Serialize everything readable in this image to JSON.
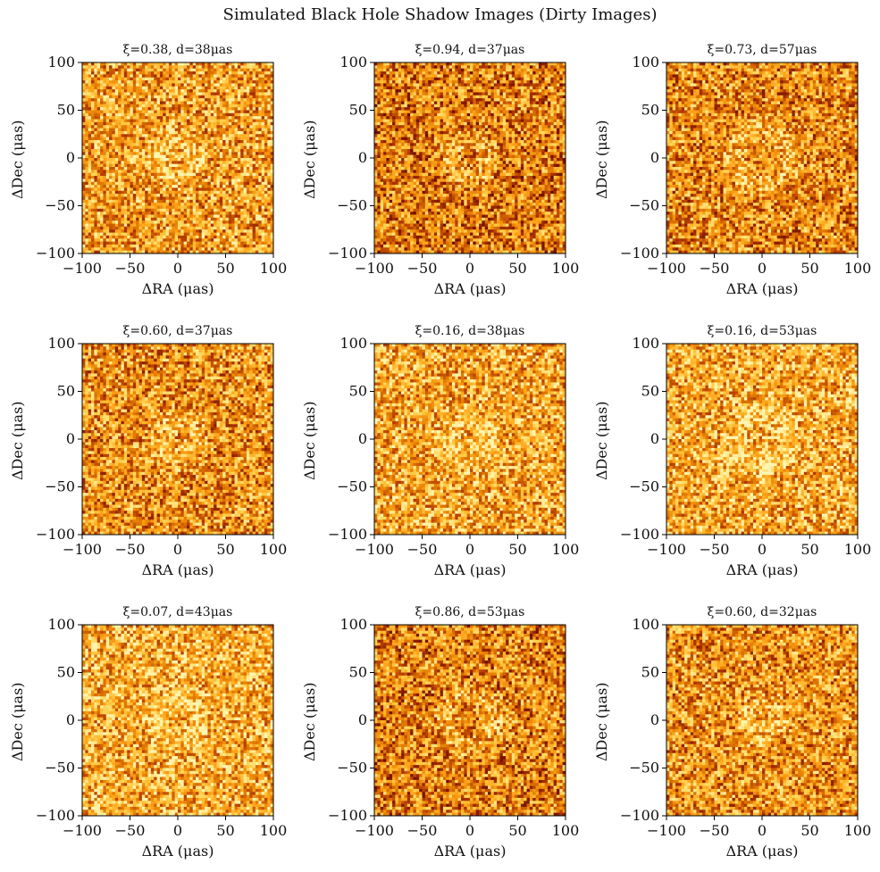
{
  "figure": {
    "title": "Simulated Black Hole Shadow Images (Dirty Images)"
  },
  "colormap": {
    "name": "afmhot",
    "stops": [
      "#5e0000",
      "#b33a00",
      "#e07800",
      "#ffa51a",
      "#ffd04d",
      "#fff5b0"
    ]
  },
  "chart_data": [
    {
      "type": "heatmap",
      "title": "ξ=0.38, d=38μas",
      "xi": 0.38,
      "d_uas": 38,
      "xlabel": "ΔRA (μas)",
      "ylabel": "ΔDec (μas)",
      "xlim": [
        -100,
        100
      ],
      "ylim": [
        -100,
        100
      ],
      "xticks": [
        -100,
        -50,
        0,
        50,
        100
      ],
      "yticks": [
        -100,
        -50,
        0,
        50,
        100
      ],
      "xtick_labels": [
        "−100",
        "−50",
        "0",
        "50",
        "100"
      ],
      "ytick_labels": [
        "−100",
        "−50",
        "0",
        "50",
        "100"
      ],
      "grid_n": 64,
      "seed": 11
    },
    {
      "type": "heatmap",
      "title": "ξ=0.94, d=37μas",
      "xi": 0.94,
      "d_uas": 37,
      "xlabel": "ΔRA (μas)",
      "ylabel": "ΔDec (μas)",
      "xlim": [
        -100,
        100
      ],
      "ylim": [
        -100,
        100
      ],
      "xticks": [
        -100,
        -50,
        0,
        50,
        100
      ],
      "yticks": [
        -100,
        -50,
        0,
        50,
        100
      ],
      "xtick_labels": [
        "−100",
        "−50",
        "0",
        "50",
        "100"
      ],
      "ytick_labels": [
        "−100",
        "−50",
        "0",
        "50",
        "100"
      ],
      "grid_n": 64,
      "seed": 23
    },
    {
      "type": "heatmap",
      "title": "ξ=0.73, d=57μas",
      "xi": 0.73,
      "d_uas": 57,
      "xlabel": "ΔRA (μas)",
      "ylabel": "ΔDec (μas)",
      "xlim": [
        -100,
        100
      ],
      "ylim": [
        -100,
        100
      ],
      "xticks": [
        -100,
        -50,
        0,
        50,
        100
      ],
      "yticks": [
        -100,
        -50,
        0,
        50,
        100
      ],
      "xtick_labels": [
        "−100",
        "−50",
        "0",
        "50",
        "100"
      ],
      "ytick_labels": [
        "−100",
        "−50",
        "0",
        "50",
        "100"
      ],
      "grid_n": 64,
      "seed": 37
    },
    {
      "type": "heatmap",
      "title": "ξ=0.60, d=37μas",
      "xi": 0.6,
      "d_uas": 37,
      "xlabel": "ΔRA (μas)",
      "ylabel": "ΔDec (μas)",
      "xlim": [
        -100,
        100
      ],
      "ylim": [
        -100,
        100
      ],
      "xticks": [
        -100,
        -50,
        0,
        50,
        100
      ],
      "yticks": [
        -100,
        -50,
        0,
        50,
        100
      ],
      "xtick_labels": [
        "−100",
        "−50",
        "0",
        "50",
        "100"
      ],
      "ytick_labels": [
        "−100",
        "−50",
        "0",
        "50",
        "100"
      ],
      "grid_n": 64,
      "seed": 41
    },
    {
      "type": "heatmap",
      "title": "ξ=0.16, d=38μas",
      "xi": 0.16,
      "d_uas": 38,
      "xlabel": "ΔRA (μas)",
      "ylabel": "ΔDec (μas)",
      "xlim": [
        -100,
        100
      ],
      "ylim": [
        -100,
        100
      ],
      "xticks": [
        -100,
        -50,
        0,
        50,
        100
      ],
      "yticks": [
        -100,
        -50,
        0,
        50,
        100
      ],
      "xtick_labels": [
        "−100",
        "−50",
        "0",
        "50",
        "100"
      ],
      "ytick_labels": [
        "−100",
        "−50",
        "0",
        "50",
        "100"
      ],
      "grid_n": 64,
      "seed": 53
    },
    {
      "type": "heatmap",
      "title": "ξ=0.16, d=53μas",
      "xi": 0.16,
      "d_uas": 53,
      "xlabel": "ΔRA (μas)",
      "ylabel": "ΔDec (μas)",
      "xlim": [
        -100,
        100
      ],
      "ylim": [
        -100,
        100
      ],
      "xticks": [
        -100,
        -50,
        0,
        50,
        100
      ],
      "yticks": [
        -100,
        -50,
        0,
        50,
        100
      ],
      "xtick_labels": [
        "−100",
        "−50",
        "0",
        "50",
        "100"
      ],
      "ytick_labels": [
        "−100",
        "−50",
        "0",
        "50",
        "100"
      ],
      "grid_n": 64,
      "seed": 67
    },
    {
      "type": "heatmap",
      "title": "ξ=0.07, d=43μas",
      "xi": 0.07,
      "d_uas": 43,
      "xlabel": "ΔRA (μas)",
      "ylabel": "ΔDec (μas)",
      "xlim": [
        -100,
        100
      ],
      "ylim": [
        -100,
        100
      ],
      "xticks": [
        -100,
        -50,
        0,
        50,
        100
      ],
      "yticks": [
        -100,
        -50,
        0,
        50,
        100
      ],
      "xtick_labels": [
        "−100",
        "−50",
        "0",
        "50",
        "100"
      ],
      "ytick_labels": [
        "−100",
        "−50",
        "0",
        "50",
        "100"
      ],
      "grid_n": 64,
      "seed": 79
    },
    {
      "type": "heatmap",
      "title": "ξ=0.86, d=53μas",
      "xi": 0.86,
      "d_uas": 53,
      "xlabel": "ΔRA (μas)",
      "ylabel": "ΔDec (μas)",
      "xlim": [
        -100,
        100
      ],
      "ylim": [
        -100,
        100
      ],
      "xticks": [
        -100,
        -50,
        0,
        50,
        100
      ],
      "yticks": [
        -100,
        -50,
        0,
        50,
        100
      ],
      "xtick_labels": [
        "−100",
        "−50",
        "0",
        "50",
        "100"
      ],
      "ytick_labels": [
        "−100",
        "−50",
        "0",
        "50",
        "100"
      ],
      "grid_n": 64,
      "seed": 83
    },
    {
      "type": "heatmap",
      "title": "ξ=0.60, d=32μas",
      "xi": 0.6,
      "d_uas": 32,
      "xlabel": "ΔRA (μas)",
      "ylabel": "ΔDec (μas)",
      "xlim": [
        -100,
        100
      ],
      "ylim": [
        -100,
        100
      ],
      "xticks": [
        -100,
        -50,
        0,
        50,
        100
      ],
      "yticks": [
        -100,
        -50,
        0,
        50,
        100
      ],
      "xtick_labels": [
        "−100",
        "−50",
        "0",
        "50",
        "100"
      ],
      "ytick_labels": [
        "−100",
        "−50",
        "0",
        "50",
        "100"
      ],
      "grid_n": 64,
      "seed": 97
    }
  ]
}
